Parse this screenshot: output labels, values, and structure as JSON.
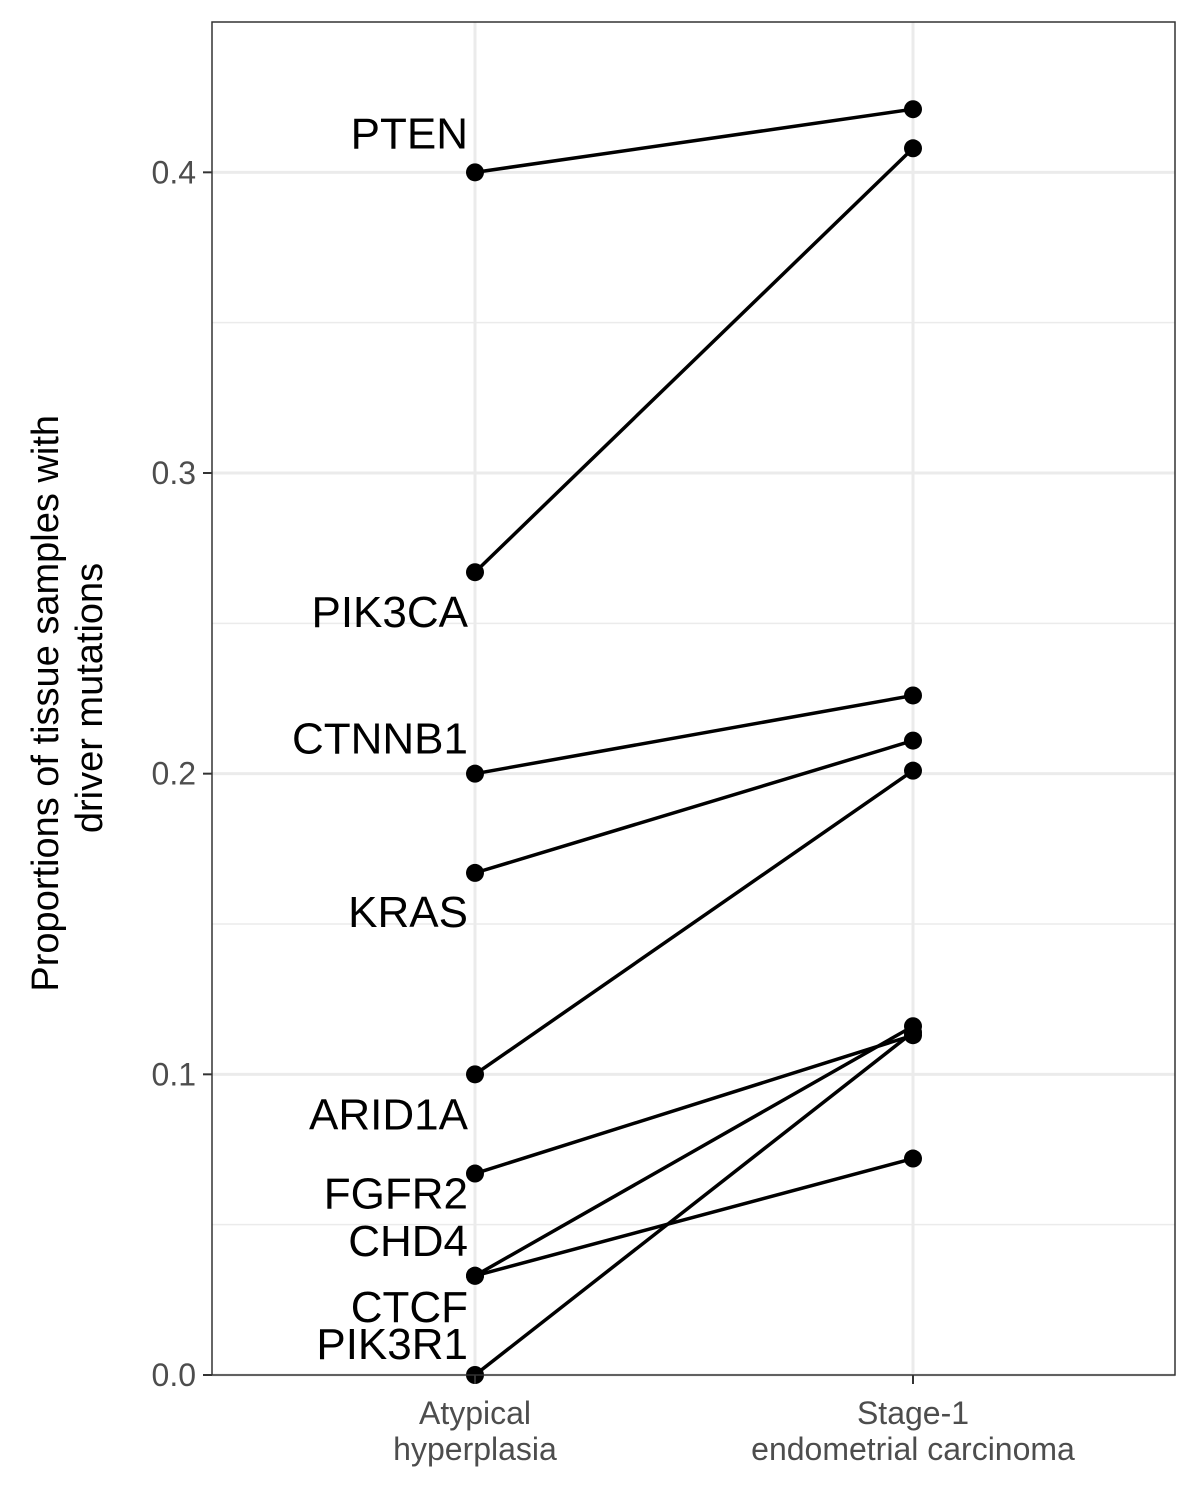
{
  "chart_data": {
    "type": "line",
    "title": "",
    "xlabel": "",
    "ylabel_lines": [
      "Proportions of tissue samples with",
      "driver mutations"
    ],
    "categories": [
      [
        "Atypical",
        "hyperplasia"
      ],
      [
        "Stage-1",
        "endometrial carcinoma"
      ]
    ],
    "ylim": [
      0,
      0.45
    ],
    "yticks": [
      0.0,
      0.1,
      0.2,
      0.3,
      0.4
    ],
    "ytick_labels": [
      "0.0",
      "0.1",
      "0.2",
      "0.3",
      "0.4"
    ],
    "grid": true,
    "legend": "none",
    "series": [
      {
        "name": "PTEN",
        "values": [
          0.4,
          0.421
        ]
      },
      {
        "name": "PIK3CA",
        "values": [
          0.267,
          0.408
        ]
      },
      {
        "name": "CTNNB1",
        "values": [
          0.2,
          0.226
        ]
      },
      {
        "name": "KRAS",
        "values": [
          0.167,
          0.211
        ]
      },
      {
        "name": "ARID1A",
        "values": [
          0.1,
          0.201
        ]
      },
      {
        "name": "FGFR2",
        "values": [
          0.067,
          0.113
        ]
      },
      {
        "name": "CHD4",
        "values": [
          0.033,
          0.072
        ]
      },
      {
        "name": "CTCF",
        "values": [
          0.033,
          0.116
        ]
      },
      {
        "name": "PIK3R1",
        "values": [
          0.0,
          0.114
        ]
      }
    ],
    "colors": {
      "line": "#000000",
      "grid": "#ebebeb",
      "panel_border": "#333333",
      "tick_text": "#4d4d4d"
    }
  }
}
